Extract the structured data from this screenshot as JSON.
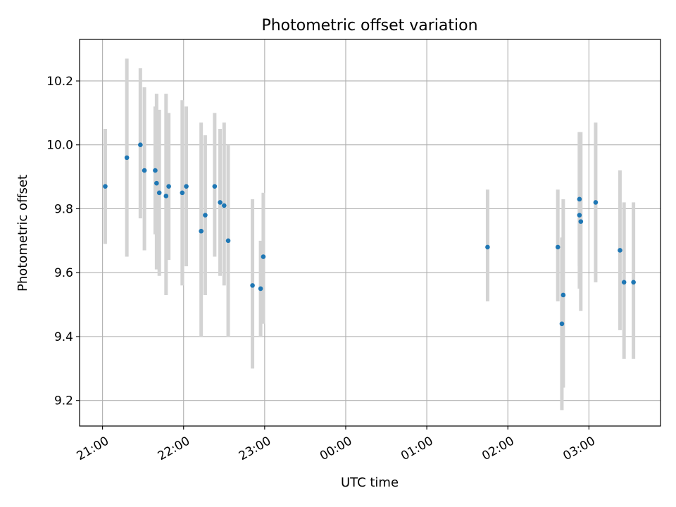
{
  "chart_data": {
    "type": "scatter",
    "title": "Photometric offset variation",
    "xlabel": "UTC time",
    "ylabel": "Photometric offset",
    "xlim": [
      "20:43",
      "03:53"
    ],
    "ylim": [
      9.12,
      10.33
    ],
    "x_ticks": [
      "21:00",
      "22:00",
      "23:00",
      "00:00",
      "01:00",
      "02:00",
      "03:00"
    ],
    "y_ticks": [
      "9.2",
      "9.4",
      "9.6",
      "9.8",
      "10.0",
      "10.2"
    ],
    "grid": true,
    "colors": {
      "point": "#1f77b4",
      "errorbar": "#d3d3d3",
      "grid": "#b0b0b0"
    },
    "points": [
      {
        "x": "21:02",
        "y": 9.87,
        "low": 9.69,
        "high": 10.05
      },
      {
        "x": "21:18",
        "y": 9.96,
        "low": 9.65,
        "high": 10.27
      },
      {
        "x": "21:28",
        "y": 10.0,
        "low": 9.77,
        "high": 10.24
      },
      {
        "x": "21:31",
        "y": 9.92,
        "low": 9.67,
        "high": 10.18
      },
      {
        "x": "21:39",
        "y": 9.92,
        "low": 9.72,
        "high": 10.12
      },
      {
        "x": "21:40",
        "y": 9.88,
        "low": 9.61,
        "high": 10.16
      },
      {
        "x": "21:42",
        "y": 9.85,
        "low": 9.59,
        "high": 10.11
      },
      {
        "x": "21:47",
        "y": 9.84,
        "low": 9.53,
        "high": 10.16
      },
      {
        "x": "21:49",
        "y": 9.87,
        "low": 9.64,
        "high": 10.1
      },
      {
        "x": "21:59",
        "y": 9.85,
        "low": 9.56,
        "high": 10.14
      },
      {
        "x": "22:02",
        "y": 9.87,
        "low": 9.62,
        "high": 10.12
      },
      {
        "x": "22:13",
        "y": 9.73,
        "low": 9.4,
        "high": 10.07
      },
      {
        "x": "22:16",
        "y": 9.78,
        "low": 9.53,
        "high": 10.03
      },
      {
        "x": "22:23",
        "y": 9.87,
        "low": 9.65,
        "high": 10.1
      },
      {
        "x": "22:27",
        "y": 9.82,
        "low": 9.59,
        "high": 10.05
      },
      {
        "x": "22:30",
        "y": 9.81,
        "low": 9.56,
        "high": 10.07
      },
      {
        "x": "22:33",
        "y": 9.7,
        "low": 9.4,
        "high": 10.0
      },
      {
        "x": "22:51",
        "y": 9.56,
        "low": 9.3,
        "high": 9.83
      },
      {
        "x": "22:57",
        "y": 9.55,
        "low": 9.4,
        "high": 9.7
      },
      {
        "x": "22:59",
        "y": 9.65,
        "low": 9.44,
        "high": 9.85
      },
      {
        "x": "01:45",
        "y": 9.68,
        "low": 9.51,
        "high": 9.86
      },
      {
        "x": "02:37",
        "y": 9.68,
        "low": 9.51,
        "high": 9.86
      },
      {
        "x": "02:40",
        "y": 9.44,
        "low": 9.17,
        "high": 9.71
      },
      {
        "x": "02:41",
        "y": 9.53,
        "low": 9.24,
        "high": 9.83
      },
      {
        "x": "02:53",
        "y": 9.83,
        "low": 9.62,
        "high": 10.04
      },
      {
        "x": "02:53",
        "y": 9.78,
        "low": 9.55,
        "high": 10.04
      },
      {
        "x": "02:54",
        "y": 9.76,
        "low": 9.48,
        "high": 10.04
      },
      {
        "x": "03:05",
        "y": 9.82,
        "low": 9.57,
        "high": 10.07
      },
      {
        "x": "03:23",
        "y": 9.67,
        "low": 9.42,
        "high": 9.92
      },
      {
        "x": "03:26",
        "y": 9.57,
        "low": 9.33,
        "high": 9.82
      },
      {
        "x": "03:33",
        "y": 9.57,
        "low": 9.33,
        "high": 9.82
      }
    ]
  }
}
